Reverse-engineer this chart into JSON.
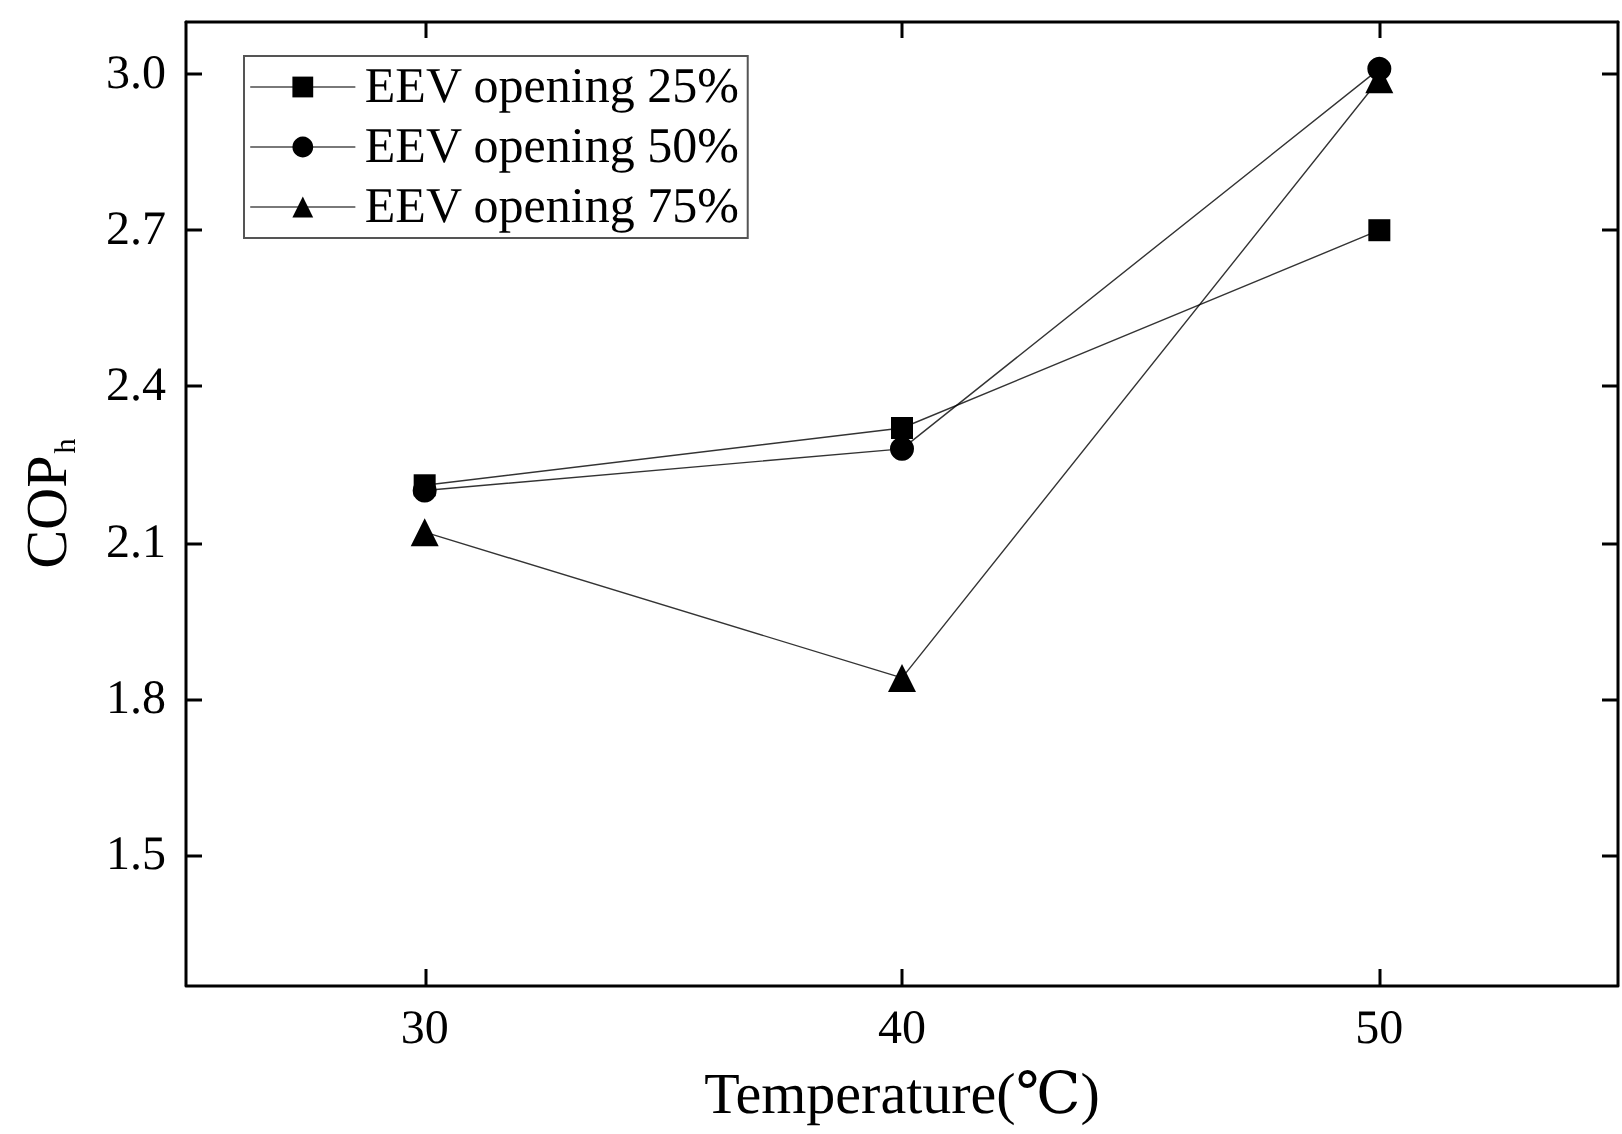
{
  "chart_data": {
    "type": "line",
    "xlabel": "Temperature(℃)",
    "ylabel": "COP$_{h}$",
    "x": [
      30,
      40,
      50
    ],
    "series": [
      {
        "name": "EEV opening 25%",
        "color": "#000000",
        "marker": "square",
        "values": [
          2.21,
          2.32,
          2.7
        ]
      },
      {
        "name": "EEV opening 50%",
        "color": "#000000",
        "marker": "circle",
        "values": [
          2.2,
          2.28,
          3.01
        ]
      },
      {
        "name": "EEV opening 75%",
        "color": "#000000",
        "marker": "triangle",
        "values": [
          2.12,
          1.84,
          2.99
        ]
      }
    ],
    "xlim": [
      25,
      55
    ],
    "xticks": [
      30,
      40,
      50
    ],
    "ylim": [
      1.25,
      3.1
    ],
    "yticks": [
      1.5,
      1.8,
      2.1,
      2.4,
      2.7,
      {
        "value": 3,
        "label": "3.0"
      }
    ],
    "legend": "top left",
    "line_style": "solid"
  }
}
